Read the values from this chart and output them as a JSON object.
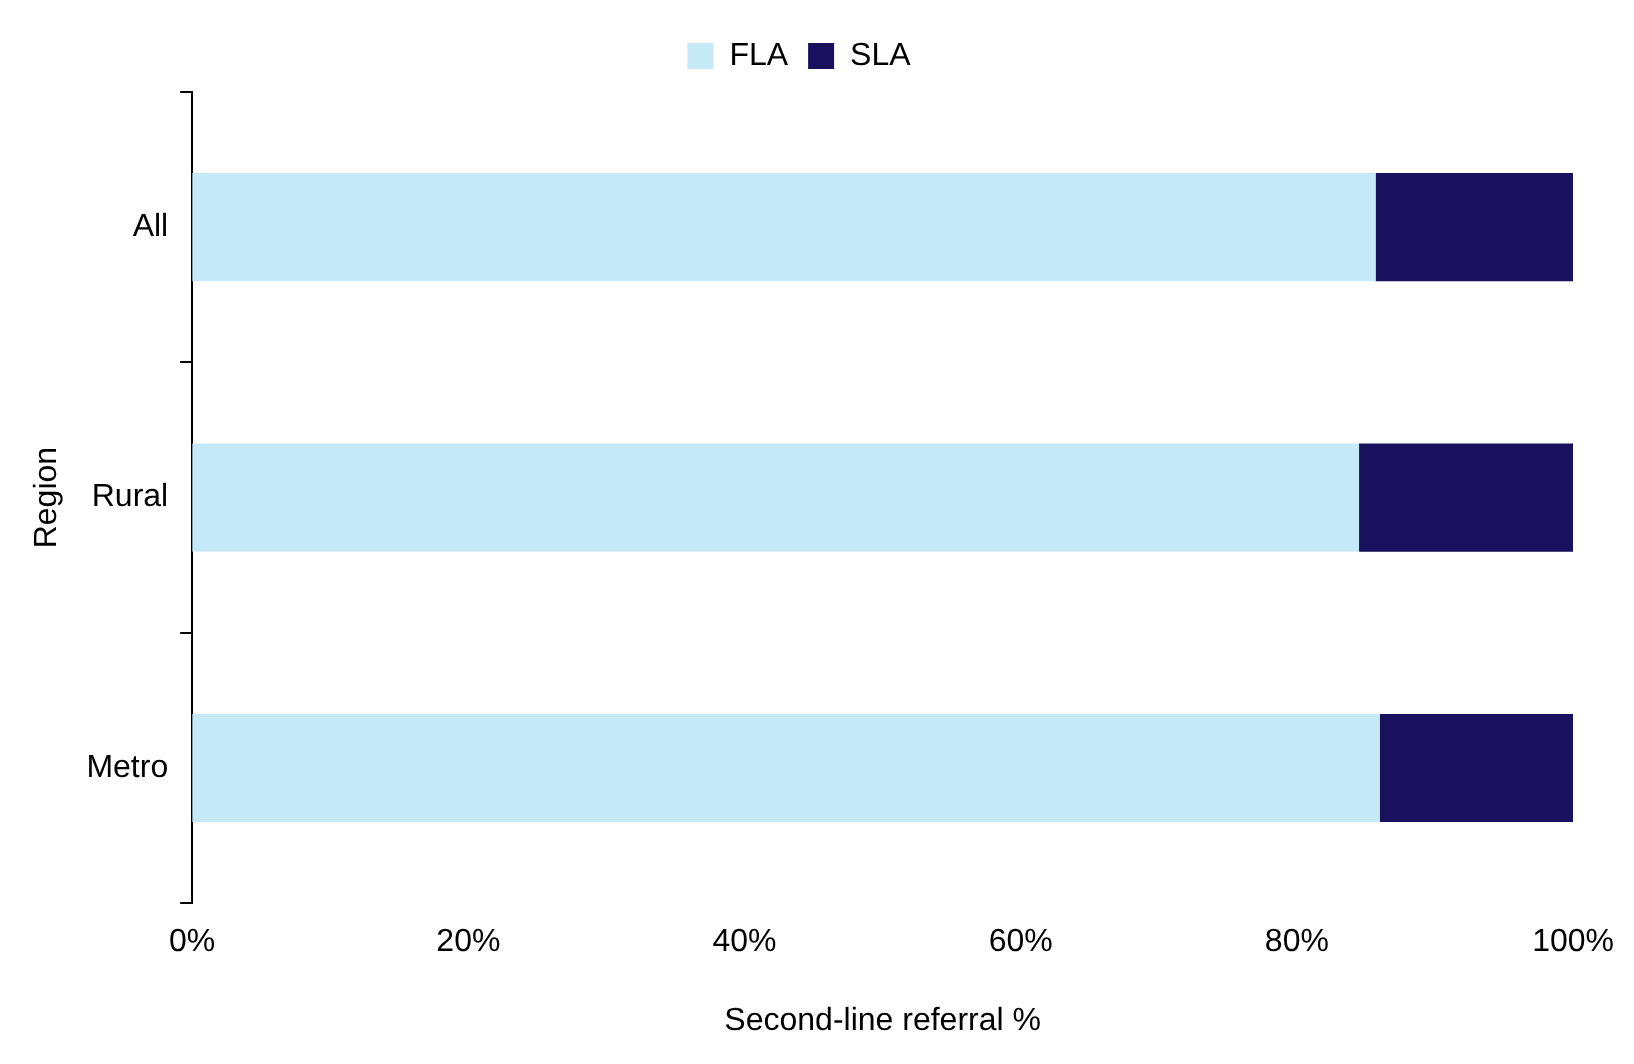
{
  "chart_data": {
    "type": "bar",
    "orientation": "horizontal",
    "stacked": true,
    "xlabel": "Second-line referral %",
    "ylabel": "Region",
    "categories": [
      "All",
      "Rural",
      "Metro"
    ],
    "series": [
      {
        "name": "FLA",
        "color": "#c6e9f8",
        "values": [
          85.7,
          84.5,
          86
        ]
      },
      {
        "name": "SLA",
        "color": "#1a115e",
        "values": [
          14.3,
          15.5,
          14
        ]
      }
    ],
    "xlim": [
      0,
      100
    ],
    "xticks": [
      {
        "value": 0,
        "label": "0%"
      },
      {
        "value": 20,
        "label": "20%"
      },
      {
        "value": 40,
        "label": "40%"
      },
      {
        "value": 60,
        "label": "60%"
      },
      {
        "value": 80,
        "label": "80%"
      },
      {
        "value": 100,
        "label": "100%"
      }
    ],
    "grid": false,
    "legend": "top"
  }
}
